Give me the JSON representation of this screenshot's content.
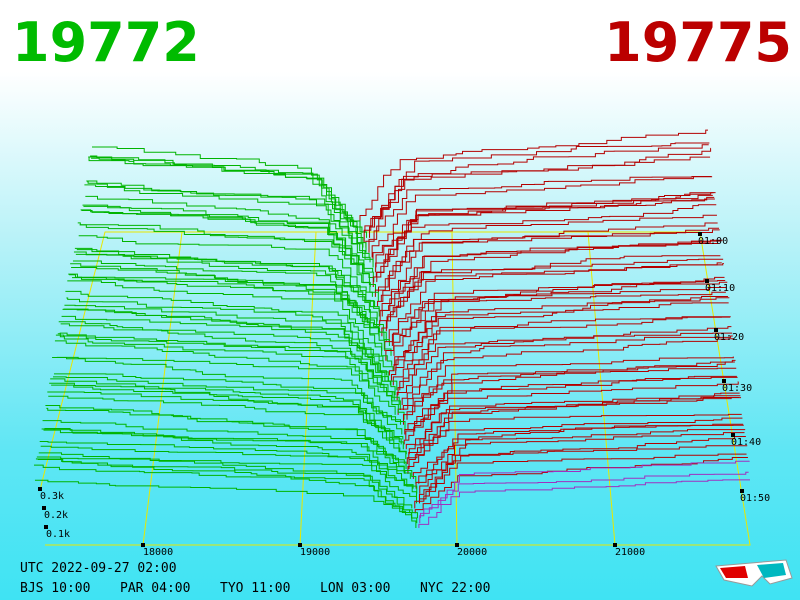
{
  "header": {
    "bid_price": "19772",
    "ask_price": "19775"
  },
  "price_axis": [
    "18000",
    "19000",
    "20000",
    "21000"
  ],
  "time_axis": [
    "01:00",
    "01:10",
    "01:20",
    "01:30",
    "01:40",
    "01:50"
  ],
  "depth_axis": [
    "0.3k",
    "0.2k",
    "0.1k"
  ],
  "footer": {
    "utc": "UTC 2022-09-27 02:00",
    "zones": [
      "BJS 10:00",
      "PAR 04:00",
      "TYO 11:00",
      "LON 03:00",
      "NYC 22:00"
    ]
  }
}
